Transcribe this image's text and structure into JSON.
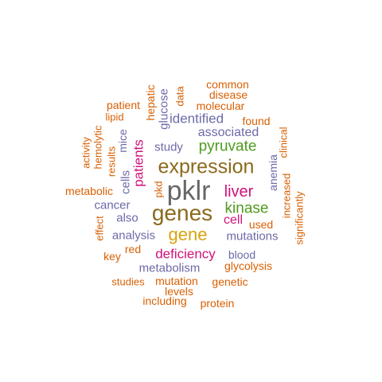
{
  "title": "Word cloud",
  "colors": {
    "gray": "#666666",
    "brown": "#8b6a1c",
    "orange": "#d95f02",
    "purple": "#6c6aa8",
    "magenta": "#d1127a",
    "green": "#4f9a1e",
    "gold": "#d8a310"
  },
  "words": [
    {
      "text": "pklr",
      "color": "gray"
    },
    {
      "text": "expression",
      "color": "brown"
    },
    {
      "text": "genes",
      "color": "brown"
    },
    {
      "text": "gene",
      "color": "gold"
    },
    {
      "text": "liver",
      "color": "magenta"
    },
    {
      "text": "kinase",
      "color": "green"
    },
    {
      "text": "pyruvate",
      "color": "green"
    },
    {
      "text": "patients",
      "color": "magenta"
    },
    {
      "text": "identified",
      "color": "purple"
    },
    {
      "text": "associated",
      "color": "purple"
    },
    {
      "text": "study",
      "color": "purple"
    },
    {
      "text": "cell",
      "color": "magenta"
    },
    {
      "text": "mutations",
      "color": "purple"
    },
    {
      "text": "analysis",
      "color": "purple"
    },
    {
      "text": "deficiency",
      "color": "magenta"
    },
    {
      "text": "metabolism",
      "color": "purple"
    },
    {
      "text": "cancer",
      "color": "purple"
    },
    {
      "text": "also",
      "color": "purple"
    },
    {
      "text": "cells",
      "color": "purple"
    },
    {
      "text": "mice",
      "color": "purple"
    },
    {
      "text": "glucose",
      "color": "purple"
    },
    {
      "text": "blood",
      "color": "purple"
    },
    {
      "text": "anemia",
      "color": "purple"
    },
    {
      "text": "pkd",
      "color": "orange"
    },
    {
      "text": "common",
      "color": "orange"
    },
    {
      "text": "disease",
      "color": "orange"
    },
    {
      "text": "molecular",
      "color": "orange"
    },
    {
      "text": "data",
      "color": "orange"
    },
    {
      "text": "hepatic",
      "color": "orange"
    },
    {
      "text": "patient",
      "color": "orange"
    },
    {
      "text": "lipid",
      "color": "orange"
    },
    {
      "text": "found",
      "color": "orange"
    },
    {
      "text": "clinical",
      "color": "orange"
    },
    {
      "text": "activity",
      "color": "orange"
    },
    {
      "text": "hemolytic",
      "color": "orange"
    },
    {
      "text": "results",
      "color": "orange"
    },
    {
      "text": "metabolic",
      "color": "orange"
    },
    {
      "text": "increased",
      "color": "orange"
    },
    {
      "text": "significantly",
      "color": "orange"
    },
    {
      "text": "effect",
      "color": "orange"
    },
    {
      "text": "used",
      "color": "orange"
    },
    {
      "text": "key",
      "color": "orange"
    },
    {
      "text": "red",
      "color": "orange"
    },
    {
      "text": "glycolysis",
      "color": "orange"
    },
    {
      "text": "studies",
      "color": "orange"
    },
    {
      "text": "mutation",
      "color": "orange"
    },
    {
      "text": "genetic",
      "color": "orange"
    },
    {
      "text": "levels",
      "color": "orange"
    },
    {
      "text": "including",
      "color": "orange"
    },
    {
      "text": "protein",
      "color": "orange"
    }
  ]
}
